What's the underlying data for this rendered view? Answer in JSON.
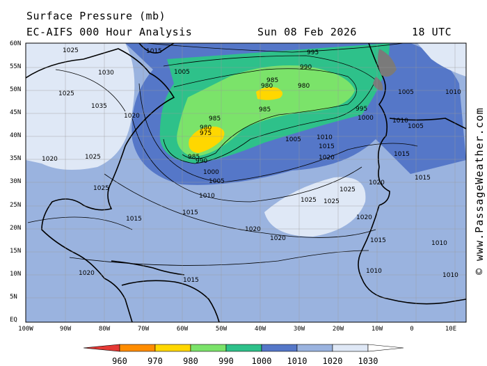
{
  "header": {
    "title": "Surface Pressure (mb)",
    "model": "EC-AIFS 000 Hour Analysis",
    "date": "Sun 08 Feb 2026",
    "time": "18 UTC"
  },
  "watermark": "© www.PassageWeather.com",
  "axes": {
    "lat_labels": [
      "60N",
      "55N",
      "50N",
      "45N",
      "40N",
      "35N",
      "30N",
      "25N",
      "20N",
      "15N",
      "10N",
      "5N",
      "EQ"
    ],
    "lon_labels": [
      "100W",
      "90W",
      "80W",
      "70W",
      "60W",
      "50W",
      "40W",
      "30W",
      "20W",
      "10W",
      "0",
      "10E"
    ]
  },
  "colorbar": {
    "labels": [
      "960",
      "970",
      "980",
      "990",
      "1000",
      "1010",
      "1020",
      "1030"
    ],
    "colors": [
      "#e53935",
      "#ff8c00",
      "#ffd700",
      "#7be36a",
      "#2ec18a",
      "#5577c8",
      "#9ab3df",
      "#dfe8f6"
    ]
  },
  "pressure_labels": [
    "995",
    "990",
    "985",
    "980",
    "980",
    "985",
    "995",
    "1000",
    "1005",
    "1010",
    "1015",
    "1020",
    "985",
    "980",
    "975",
    "985",
    "990",
    "1000",
    "1005",
    "1010",
    "1015",
    "1020",
    "1025",
    "1025",
    "1025",
    "1020",
    "1030",
    "1035",
    "1025",
    "1025",
    "1020",
    "1025",
    "1020",
    "1015",
    "1005",
    "1005",
    "1010",
    "1005",
    "1010",
    "1015",
    "1020",
    "1015",
    "1025",
    "1015",
    "1020",
    "1015",
    "1010",
    "1010",
    "1015",
    "1020",
    "1010"
  ],
  "map_colors": {
    "c1030": "#dfe8f6",
    "c1020": "#9ab3df",
    "c1010": "#5577c8",
    "c1000": "#2ec18a",
    "c990": "#7be36a",
    "c980": "#ffd700",
    "land": "#7a7a7a",
    "coast": "#000000"
  }
}
